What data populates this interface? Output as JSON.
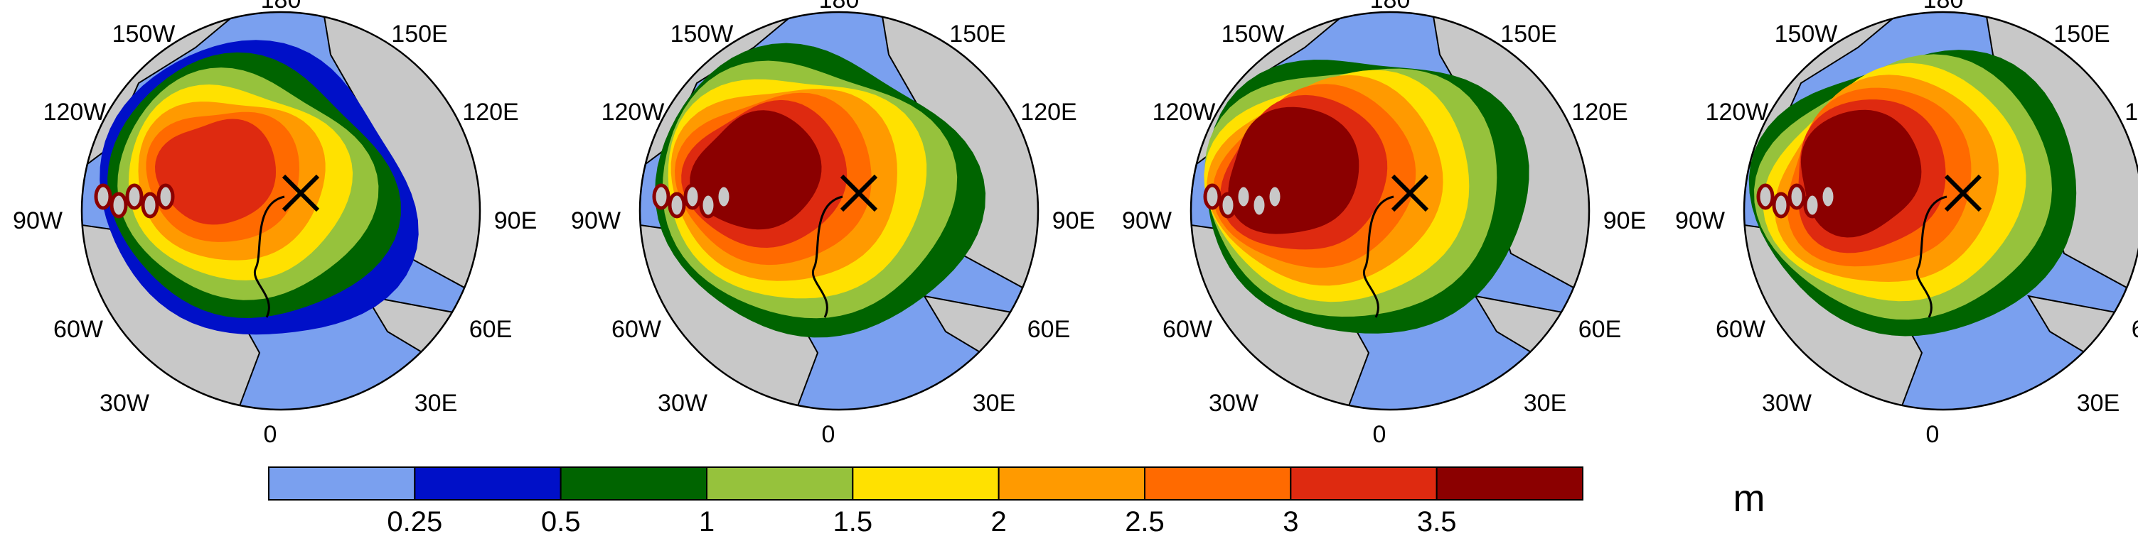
{
  "figure": {
    "panel_count": 4,
    "longitude_labels": [
      "180",
      "150E",
      "120E",
      "90E",
      "60E",
      "30E",
      "0",
      "30W",
      "60W",
      "90W",
      "120W",
      "150W"
    ],
    "colorbar": {
      "tick_labels": [
        "0.25",
        "0.5",
        "1",
        "1.5",
        "2",
        "2.5",
        "3",
        "3.5"
      ],
      "colors": [
        "#7aa0ef",
        "#0010c8",
        "#006400",
        "#96c23c",
        "#ffe100",
        "#ff9a00",
        "#ff6a00",
        "#de2a10",
        "#8b0000"
      ],
      "unit": "m"
    }
  },
  "colors": {
    "ocean_open": "#7aa0ef",
    "land": "#c8c8c8",
    "coastline": "#000000",
    "track_line": "#000000"
  }
}
